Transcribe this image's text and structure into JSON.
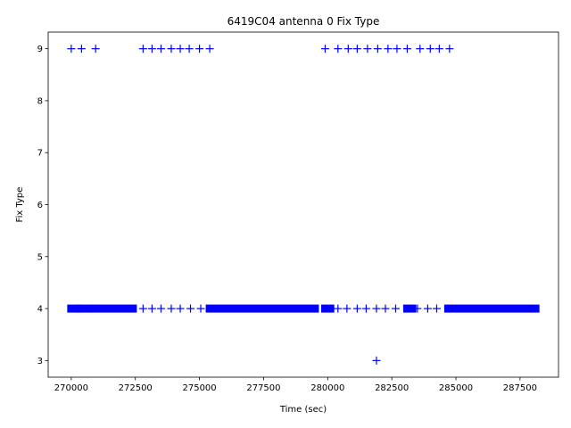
{
  "chart_data": {
    "type": "scatter",
    "title": "6419C04 antenna 0 Fix Type",
    "xlabel": "Time (sec)",
    "ylabel": "Fix Type",
    "xlim": [
      269100,
      289000
    ],
    "ylim": [
      2.68,
      9.32
    ],
    "xticks": [
      270000,
      272500,
      275000,
      277500,
      280000,
      282500,
      285000,
      287500
    ],
    "xtick_labels": [
      "270000",
      "272500",
      "275000",
      "277500",
      "280000",
      "282500",
      "285000",
      "287500"
    ],
    "yticks": [
      3,
      4,
      5,
      6,
      7,
      8,
      9
    ],
    "ytick_labels": [
      "3",
      "4",
      "5",
      "6",
      "7",
      "8",
      "9"
    ],
    "marker": "+",
    "color": "#0000ff",
    "grid": false,
    "series": [
      {
        "x_dense_ranges": [
          [
            270000,
            270200
          ],
          [
            270350,
            270650
          ],
          [
            270900,
            272400
          ],
          [
            275400,
            279500
          ],
          [
            279900,
            280100
          ],
          [
            283100,
            283300
          ],
          [
            284700,
            288100
          ]
        ],
        "range_y": 4,
        "x": [
          270400,
          270950,
          272800,
          273150,
          273500,
          273900,
          274250,
          274650,
          275050,
          280400,
          280750,
          281150,
          281500,
          281900,
          282250,
          282650,
          283500,
          283900,
          284250,
          270000,
          270400,
          270950,
          272800,
          273150,
          273500,
          273900,
          274250,
          274600,
          275000,
          275400,
          279900,
          280400,
          280800,
          281150,
          281550,
          281950,
          282350,
          282700,
          283100,
          283600,
          284000,
          284350,
          284750,
          281900
        ],
        "y": [
          4,
          4,
          4,
          4,
          4,
          4,
          4,
          4,
          4,
          4,
          4,
          4,
          4,
          4,
          4,
          4,
          4,
          4,
          4,
          9,
          9,
          9,
          9,
          9,
          9,
          9,
          9,
          9,
          9,
          9,
          9,
          9,
          9,
          9,
          9,
          9,
          9,
          9,
          9,
          9,
          9,
          9,
          9,
          3
        ]
      }
    ]
  }
}
